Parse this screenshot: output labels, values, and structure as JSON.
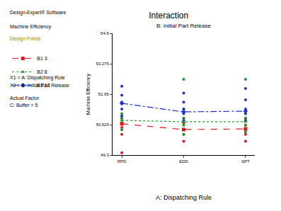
{
  "chart_data": {
    "type": "line",
    "title": "Interaction",
    "subtitle": "B: Initial Part Release",
    "x_label": "A: Dispatching Rule",
    "y_label": "Machine Efficiency",
    "categories": [
      "RPD",
      "EDD",
      "SPT"
    ],
    "ylim": [
      49.3,
      54.6
    ],
    "yticks": [
      49.3,
      50.625,
      51.95,
      53.275,
      54.6
    ],
    "grid": false,
    "legend": "left",
    "annotations": [
      "Design-Expert® Software",
      "Machine Efficiency",
      "Design Points",
      "X1 = A: Dispatching Rule",
      "X2 = B: Initial Part Release",
      "Actual Factor",
      "C: Buffer = 5"
    ],
    "series": [
      {
        "name": "B1 3",
        "color": "#e8141b",
        "line_style": "dash",
        "marker": "square",
        "values": [
          50.66,
          50.41,
          50.44
        ],
        "points": [
          [
            49.4,
            50.2,
            50.5,
            50.7,
            50.9
          ],
          [
            49.9,
            50.2,
            50.4,
            50.7,
            50.9
          ],
          [
            49.9,
            50.2,
            50.4,
            50.6,
            50.9
          ]
        ]
      },
      {
        "name": "B2 8",
        "color": "#1a9a2a",
        "line_style": "dot",
        "marker": "triangle-up",
        "values": [
          50.81,
          50.75,
          50.75
        ],
        "points": [
          [
            50.4,
            50.7,
            50.9,
            51.1
          ],
          [
            50.2,
            50.6,
            50.9,
            51.3,
            52.6
          ],
          [
            50.3,
            50.6,
            50.9,
            51.2,
            52.6
          ]
        ]
      },
      {
        "name": "B3 12",
        "color": "#1c2fd6",
        "line_style": "dashdot",
        "marker": "diamond",
        "values": [
          51.55,
          51.18,
          51.21
        ],
        "points": [
          [
            51.0,
            51.3,
            51.6,
            51.9,
            52.3
          ],
          [
            50.8,
            51.1,
            51.3,
            51.6,
            52.0
          ],
          [
            50.8,
            51.1,
            51.3,
            51.7,
            52.2
          ]
        ]
      }
    ]
  }
}
